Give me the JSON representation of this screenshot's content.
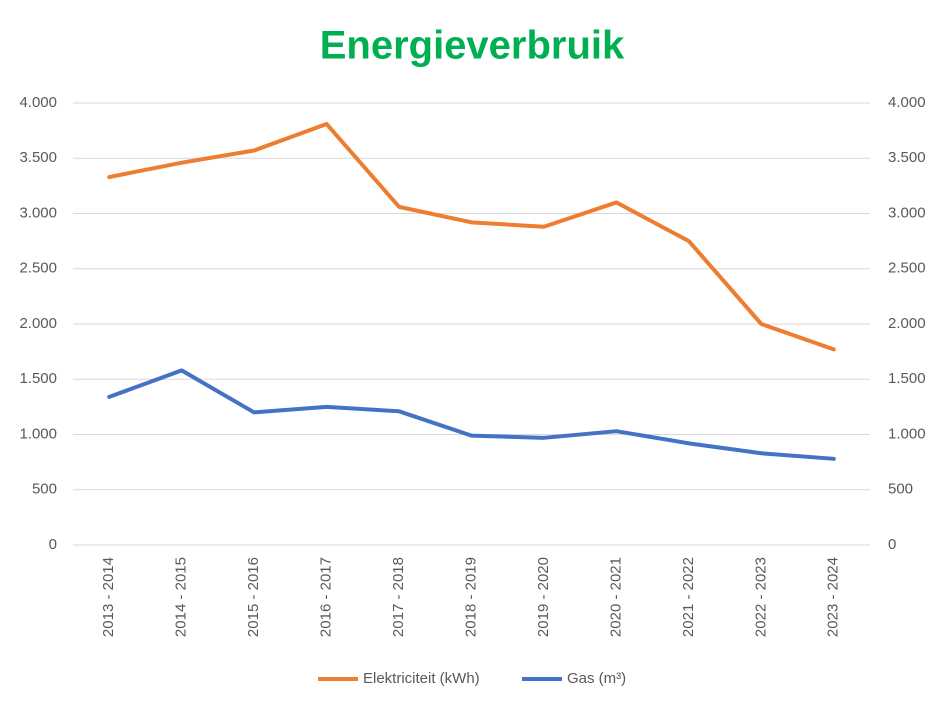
{
  "chart_data": {
    "type": "line",
    "title": "Energieverbruik",
    "categories": [
      "2013 - 2014",
      "2014 - 2015",
      "2015 - 2016",
      "2016 - 2017",
      "2017 - 2018",
      "2018 - 2019",
      "2019 - 2020",
      "2020 - 2021",
      "2021 - 2022",
      "2022 - 2023",
      "2023 - 2024"
    ],
    "series": [
      {
        "name": "Elektriciteit (kWh)",
        "color": "#ed7d31",
        "values": [
          3330,
          3460,
          3570,
          3810,
          3060,
          2920,
          2880,
          3100,
          2750,
          2000,
          1770
        ]
      },
      {
        "name": "Gas (m³)",
        "color": "#4472c4",
        "axis": "y2",
        "values": [
          1340,
          1580,
          1200,
          1250,
          1210,
          990,
          970,
          1030,
          920,
          830,
          780
        ]
      }
    ],
    "ylim": [
      0,
      4000
    ],
    "yticks": [
      0,
      500,
      {
        "value": 1000,
        "label": "1.000"
      },
      {
        "value": 1500,
        "label": "1.500"
      },
      {
        "value": 2000,
        "label": "2.000"
      },
      {
        "value": 2500,
        "label": "2.500"
      },
      {
        "value": 3000,
        "label": "3.000"
      },
      {
        "value": 3500,
        "label": "3.500"
      },
      {
        "value": 4000,
        "label": "4.000"
      }
    ],
    "y2lim": [
      0,
      4000
    ],
    "y2ticks": [
      0,
      500,
      {
        "value": 1000,
        "label": "1.000"
      },
      {
        "value": 1500,
        "label": "1.500"
      },
      {
        "value": 2000,
        "label": "2.000"
      },
      {
        "value": 2500,
        "label": "2.500"
      },
      {
        "value": 3000,
        "label": "3.000"
      },
      {
        "value": 3500,
        "label": "3.500"
      },
      {
        "value": 4000,
        "label": "4.000"
      }
    ],
    "grid": true,
    "legend": "bottom"
  }
}
